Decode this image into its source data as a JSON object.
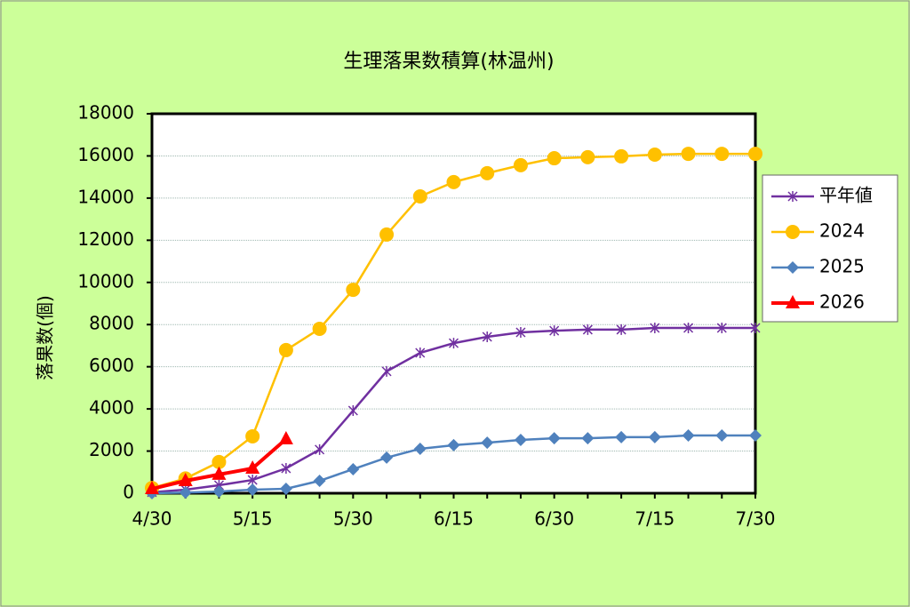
{
  "chart_data": {
    "type": "line",
    "title": "生理落果数積算(林温州)",
    "y_label": "落果数(個)",
    "categories": [
      "4/30",
      null,
      null,
      "5/15",
      null,
      null,
      "5/30",
      null,
      null,
      "6/15",
      null,
      null,
      "6/30",
      null,
      null,
      "7/15",
      null,
      null,
      "7/30"
    ],
    "ylim": [
      0,
      18000
    ],
    "yticks": [
      0,
      2000,
      4000,
      6000,
      8000,
      10000,
      12000,
      14000,
      16000,
      18000
    ],
    "grid": true,
    "legend": "right",
    "series": [
      {
        "name": "平年値",
        "color": "#7030a0",
        "marker": "star",
        "values": [
          50,
          170,
          380,
          630,
          1180,
          2070,
          3920,
          5780,
          6660,
          7120,
          7420,
          7630,
          7710,
          7760,
          7760,
          7840,
          7840,
          7840,
          7840
        ]
      },
      {
        "name": "2024",
        "color": "#ffc000",
        "marker": "circle",
        "values": [
          250,
          700,
          1480,
          2700,
          6790,
          7800,
          9650,
          12270,
          14080,
          14760,
          15180,
          15560,
          15890,
          15940,
          15980,
          16060,
          16100,
          16100,
          16100
        ]
      },
      {
        "name": "2025",
        "color": "#4f81bd",
        "marker": "diamond",
        "values": [
          0,
          30,
          80,
          170,
          210,
          590,
          1140,
          1690,
          2110,
          2280,
          2400,
          2530,
          2610,
          2610,
          2660,
          2660,
          2740,
          2740,
          2740
        ]
      },
      {
        "name": "2026",
        "color": "#ff0000",
        "marker": "triangle",
        "values": [
          210,
          590,
          890,
          1180,
          2570,
          null,
          null,
          null,
          null,
          null,
          null,
          null,
          null,
          null,
          null,
          null,
          null,
          null,
          null
        ]
      }
    ]
  }
}
